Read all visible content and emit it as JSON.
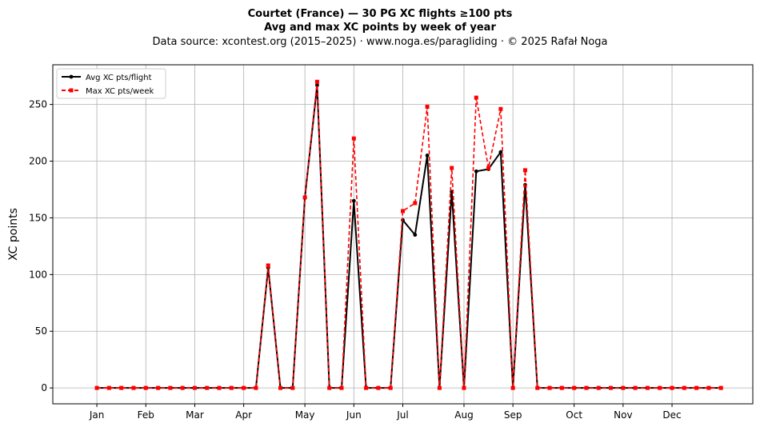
{
  "chart_data": {
    "type": "line",
    "title": "Courtet (France)  —  30 PG XC flights ≥100 pts",
    "subtitle": "Avg and max XC points by week of year",
    "source": "Data source: xcontest.org (2015–2025)  ·  www.noga.es/paragliding  ·  © 2025 Rafał Noga",
    "xlabel": "",
    "ylabel": "XC points",
    "grid": true,
    "legend_position": "top-left",
    "xlim": [
      -2.6,
      54.6
    ],
    "ylim": [
      -14,
      285
    ],
    "x_ticks": [
      {
        "label": "Jan",
        "week": 1
      },
      {
        "label": "Feb",
        "week": 5
      },
      {
        "label": "Mar",
        "week": 9
      },
      {
        "label": "Apr",
        "week": 13
      },
      {
        "label": "May",
        "week": 18
      },
      {
        "label": "Jun",
        "week": 22
      },
      {
        "label": "Jul",
        "week": 26
      },
      {
        "label": "Aug",
        "week": 31
      },
      {
        "label": "Sep",
        "week": 35
      },
      {
        "label": "Oct",
        "week": 40
      },
      {
        "label": "Nov",
        "week": 44
      },
      {
        "label": "Dec",
        "week": 48
      }
    ],
    "y_ticks": [
      0,
      50,
      100,
      150,
      200,
      250
    ],
    "x": [
      1,
      2,
      3,
      4,
      5,
      6,
      7,
      8,
      9,
      10,
      11,
      12,
      13,
      14,
      15,
      16,
      17,
      18,
      19,
      20,
      21,
      22,
      23,
      24,
      25,
      26,
      27,
      28,
      29,
      30,
      31,
      32,
      33,
      34,
      35,
      36,
      37,
      38,
      39,
      40,
      41,
      42,
      43,
      44,
      45,
      46,
      47,
      48,
      49,
      50,
      51,
      52
    ],
    "series": [
      {
        "name": "Avg XC pts/flight",
        "color": "#000000",
        "values": [
          0,
          0,
          0,
          0,
          0,
          0,
          0,
          0,
          0,
          0,
          0,
          0,
          0,
          0,
          106,
          0,
          0,
          168,
          267,
          0,
          0,
          165,
          0,
          0,
          0,
          148,
          135,
          205,
          0,
          173,
          0,
          191,
          193,
          208,
          0,
          179,
          0,
          0,
          0,
          0,
          0,
          0,
          0,
          0,
          0,
          0,
          0,
          0,
          0,
          0,
          0,
          0
        ]
      },
      {
        "name": "Max XC pts/week",
        "color": "#ff0000",
        "values": [
          0,
          0,
          0,
          0,
          0,
          0,
          0,
          0,
          0,
          0,
          0,
          0,
          0,
          0,
          108,
          0,
          0,
          168,
          270,
          0,
          0,
          220,
          0,
          0,
          0,
          156,
          163,
          248,
          0,
          194,
          0,
          256,
          194,
          246,
          0,
          192,
          0,
          0,
          0,
          0,
          0,
          0,
          0,
          0,
          0,
          0,
          0,
          0,
          0,
          0,
          0,
          0
        ]
      }
    ]
  }
}
